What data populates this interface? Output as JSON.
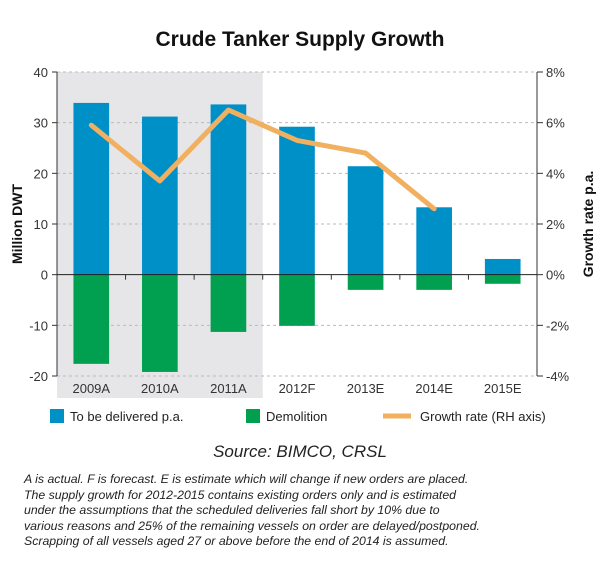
{
  "chart_data": {
    "type": "bar",
    "title": "Crude Tanker Supply Growth",
    "categories": [
      "2009A",
      "2010A",
      "2011A",
      "2012F",
      "2013E",
      "2014E",
      "2015E"
    ],
    "ylabel": "Million DWT",
    "y2label": "Growth rate p.a.",
    "ylim": [
      -20,
      40
    ],
    "y2lim": [
      -4,
      8
    ],
    "yticks": [
      "40",
      "30",
      "20",
      "10",
      "0",
      "-10",
      "-20"
    ],
    "y2ticks": [
      "8%",
      "6%",
      "4%",
      "2%",
      "0%",
      "-2%",
      "-4%"
    ],
    "grid": true,
    "shaded_categories": [
      "2009A",
      "2010A",
      "2011A"
    ],
    "series": [
      {
        "name": "To be delivered p.a.",
        "type": "bar",
        "color": "#0090c8",
        "values": [
          33.9,
          31.2,
          33.6,
          29.2,
          21.4,
          13.3,
          3.1
        ]
      },
      {
        "name": "Demolition",
        "type": "bar",
        "color": "#00a050",
        "values": [
          -17.6,
          -19.2,
          -11.3,
          -10.1,
          -3.0,
          -3.0,
          -1.8
        ]
      },
      {
        "name": "Growth rate (RH axis)",
        "type": "line",
        "axis": "right",
        "color": "#f0b060",
        "values": [
          5.9,
          3.7,
          6.5,
          5.3,
          4.8,
          2.6,
          null
        ]
      }
    ],
    "legend": "bottom",
    "source": "Source: BIMCO, CRSL"
  },
  "notes": [
    "A is actual. F is forecast. E is estimate which will change if new orders are placed.",
    "The supply growth for 2012-2015 contains existing orders only and is estimated",
    "under the assumptions that the scheduled deliveries fall short by 10% due to",
    "various reasons and 25% of the remaining vessels on order are delayed/postponed.",
    "Scrapping of all vessels aged 27 or above before the end of 2014 is assumed."
  ]
}
